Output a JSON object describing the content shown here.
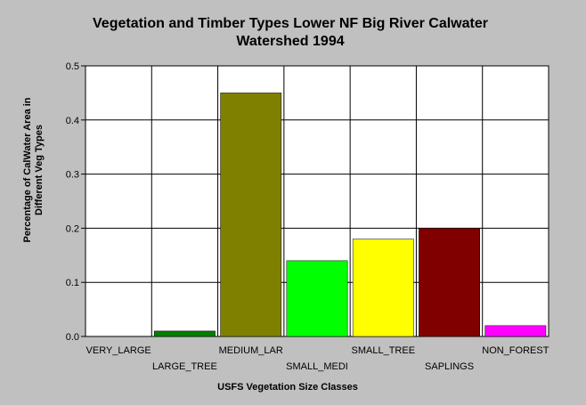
{
  "chart_data": {
    "type": "bar",
    "title_line1": "Vegetation and Timber Types Lower NF Big River Calwater",
    "title_line2": "Watershed 1994",
    "xlabel": "USFS Vegetation Size Classes",
    "ylabel_line1": "Percentage of CalWater Area in",
    "ylabel_line2": "Different Veg Types",
    "categories": [
      "VERY_LARGE",
      "LARGE_TREE",
      "MEDIUM_LAR",
      "SMALL_MEDI",
      "SMALL_TREE",
      "SAPLINGS",
      "NON_FOREST"
    ],
    "values": [
      0,
      0.01,
      0.45,
      0.14,
      0.18,
      0.2,
      0.02
    ],
    "colors": [
      "#008000",
      "#008000",
      "#808000",
      "#00ff00",
      "#ffff00",
      "#800000",
      "#ff00ff"
    ],
    "ylim": [
      0,
      0.5
    ],
    "yticks": [
      "0.0",
      "0.1",
      "0.2",
      "0.3",
      "0.4",
      "0.5"
    ],
    "grid": true,
    "background": "#ffffff"
  }
}
